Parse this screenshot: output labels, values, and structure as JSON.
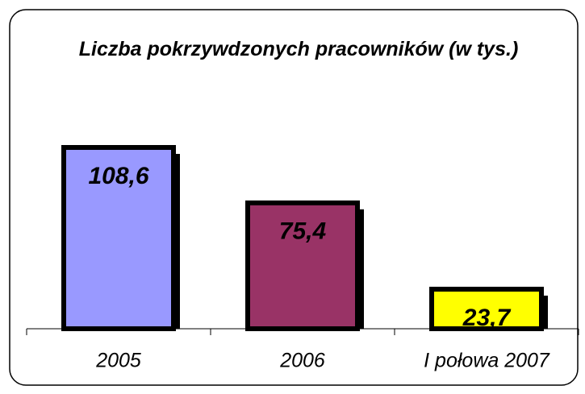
{
  "chart_data": {
    "type": "bar",
    "title": "Liczba pokrzywdzonych pracowników (w tys.)",
    "categories": [
      "2005",
      "2006",
      "I połowa 2007"
    ],
    "values": [
      108.6,
      75.4,
      23.7
    ],
    "value_labels": [
      "108,6",
      "75,4",
      "23,7"
    ],
    "colors": [
      "#9999ff",
      "#993366",
      "#ffff00"
    ]
  }
}
